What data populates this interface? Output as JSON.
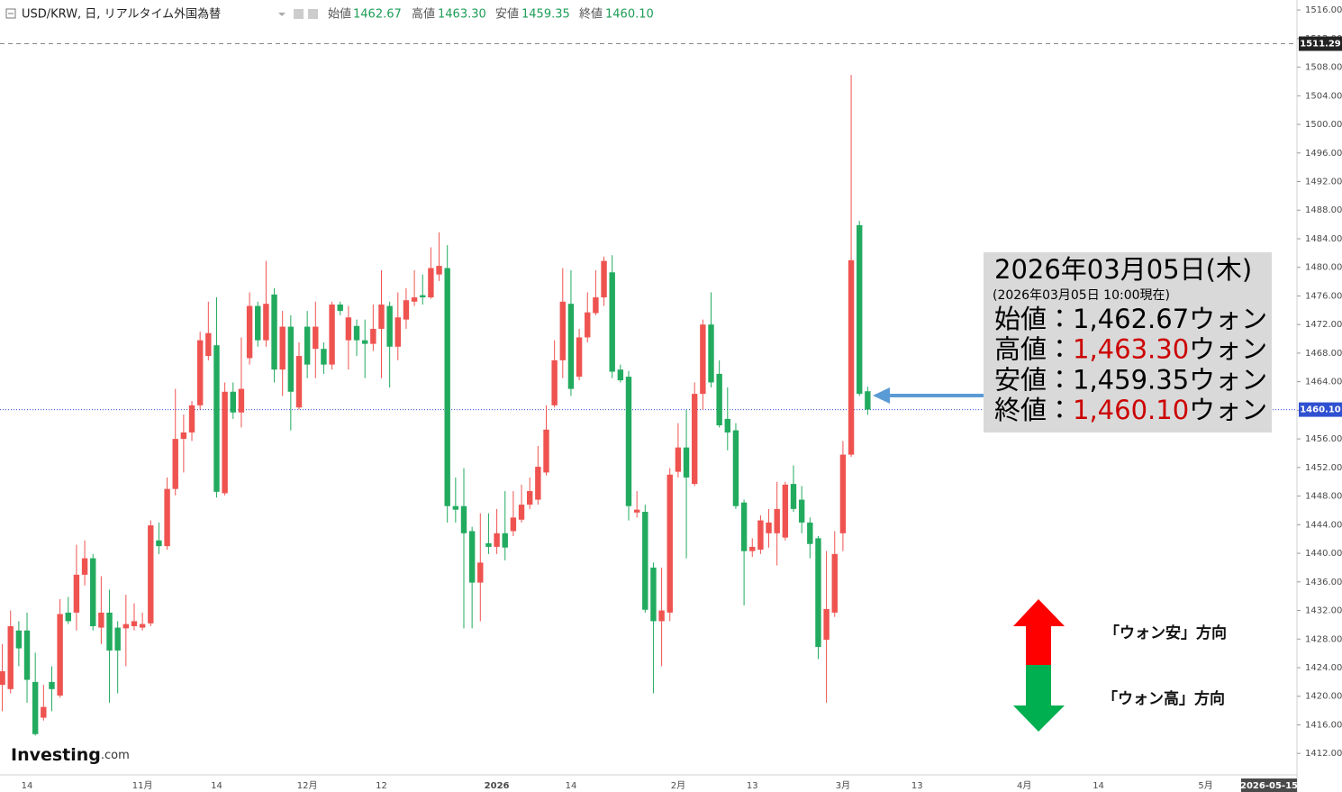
{
  "chart_data": {
    "type": "candlestick",
    "header": {
      "symbol": "USD/KRW, 日, リアルタイム外国為替",
      "ohlc": [
        {
          "label": "始値",
          "value": "1462.67"
        },
        {
          "label": "高値",
          "value": "1463.30"
        },
        {
          "label": "安値",
          "value": "1459.35"
        },
        {
          "label": "終値",
          "value": "1460.10"
        }
      ]
    },
    "categories": [
      null,
      null,
      null,
      "14",
      null,
      null,
      null,
      null,
      null,
      null,
      null,
      null,
      null,
      null,
      null,
      null,
      null,
      "11月",
      null,
      null,
      null,
      null,
      null,
      null,
      null,
      null,
      "14",
      null,
      null,
      null,
      null,
      null,
      null,
      null,
      null,
      null,
      null,
      "12月",
      null,
      null,
      null,
      null,
      null,
      null,
      null,
      null,
      "12",
      null,
      null,
      null,
      null,
      null,
      null,
      null,
      null,
      null,
      null,
      null,
      null,
      null,
      "2026",
      null,
      null,
      null,
      null,
      null,
      null,
      null,
      null,
      "14",
      null,
      null,
      null,
      null,
      null,
      null,
      null,
      null,
      null,
      null,
      null,
      null,
      "2月",
      null,
      null,
      null,
      null,
      null,
      null,
      null,
      null,
      "13",
      null,
      null,
      null,
      null,
      null,
      null,
      null,
      null,
      null,
      null,
      "3月",
      null,
      null,
      null,
      null,
      null,
      null,
      null,
      null,
      "13",
      null,
      null,
      null,
      null,
      null,
      null,
      null,
      null,
      null,
      null,
      null,
      null,
      "4月",
      null,
      null,
      null,
      null,
      null,
      null,
      null,
      null,
      "14",
      null,
      null,
      null,
      null,
      null,
      null,
      null,
      null,
      null,
      null,
      null,
      null,
      "5月",
      null,
      null,
      null,
      null,
      null,
      null,
      null,
      null,
      null,
      null
    ],
    "open": [
      1421.6,
      1421.0,
      1429.2,
      1429.2,
      1422.0,
      1417.0,
      1422.0,
      1420.1,
      1431.7,
      1431.7,
      1437.0,
      1439.3,
      1429.6,
      1431.7,
      1429.6,
      1429.5,
      1429.8,
      1429.6,
      1430.2,
      1441.8,
      1441.0,
      1449.0,
      1456.0,
      1456.9,
      1460.7,
      1467.6,
      1469.1,
      1448.4,
      1462.6,
      1459.7,
      1467.3,
      1474.6,
      1469.8,
      1476.2,
      1465.7,
      1471.7,
      1460.4,
      1471.7,
      1468.6,
      1468.6,
      1466.4,
      1474.8,
      1469.8,
      1471.8,
      1469.8,
      1469.3,
      1471.4,
      1474.6,
      1468.9,
      1472.7,
      1475.2,
      1476.1,
      1475.8,
      1479.0,
      1479.9,
      1446.6,
      1446.6,
      1443.1,
      1435.9,
      1441.4,
      1440.9,
      1442.8,
      1443.1,
      1444.7,
      1446.8,
      1447.5,
      1451.3,
      1460.7,
      1467.0,
      1474.9,
      1464.7,
      1470.2,
      1473.6,
      1475.8,
      1479.3,
      1465.7,
      1464.7,
      1445.7,
      1445.8,
      1438.0,
      1430.5,
      1431.7,
      1451.4,
      1454.8,
      1449.7,
      1462.3,
      1472.0,
      1465.1,
      1458.8,
      1457.2,
      1447.1,
      1440.3,
      1440.5,
      1442.8,
      1442.8,
      1442.2,
      1449.7,
      1447.5,
      1444.3,
      1442.1,
      1427.9,
      1431.7,
      1442.8,
      1453.8,
      1485.9,
      1462.67,
      null,
      null,
      null,
      null,
      null,
      null,
      null,
      null,
      null,
      null,
      null,
      null,
      null,
      null,
      null,
      null,
      null,
      null,
      null,
      null,
      null,
      null,
      null,
      null,
      null,
      null,
      null,
      null,
      null,
      null,
      null,
      null,
      null,
      null,
      null,
      null,
      null,
      null,
      null,
      null,
      null,
      null,
      null,
      null,
      null,
      null,
      null,
      null,
      null,
      null,
      null
    ],
    "high": [
      1427.3,
      1432.0,
      1430.5,
      1431.7,
      1426.1,
      1421.6,
      1424.2,
      1433.6,
      1433.9,
      1441.2,
      1441.8,
      1439.9,
      1436.8,
      1434.9,
      1430.5,
      1434.2,
      1433.0,
      1431.7,
      1444.6,
      1444.3,
      1450.6,
      1463.0,
      1459.4,
      1461.3,
      1471.0,
      1475.2,
      1475.8,
      1463.9,
      1463.9,
      1470.2,
      1476.5,
      1475.2,
      1480.9,
      1477.1,
      1473.9,
      1473.3,
      1469.5,
      1473.9,
      1475.2,
      1469.5,
      1475.2,
      1475.2,
      1474.6,
      1472.7,
      1472.7,
      1474.8,
      1479.6,
      1475.2,
      1476.5,
      1477.1,
      1479.6,
      1479.0,
      1482.8,
      1484.9,
      1483.1,
      1450.6,
      1451.9,
      1443.7,
      1445.6,
      1445.6,
      1446.2,
      1448.7,
      1448.7,
      1449.6,
      1450.6,
      1455.0,
      1460.7,
      1469.8,
      1479.9,
      1479.6,
      1471.4,
      1476.5,
      1479.6,
      1481.5,
      1481.7,
      1466.4,
      1465.5,
      1448.7,
      1446.8,
      1438.7,
      1438.0,
      1451.9,
      1458.2,
      1460.1,
      1463.9,
      1472.7,
      1476.5,
      1467.0,
      1463.2,
      1458.2,
      1447.5,
      1442.1,
      1445.3,
      1446.2,
      1450.0,
      1450.0,
      1452.3,
      1449.4,
      1445.0,
      1442.4,
      1440.3,
      1443.1,
      1455.7,
      1506.9,
      1486.5,
      1463.3,
      null,
      null,
      null,
      null,
      null,
      null,
      null,
      null,
      null,
      null,
      null,
      null,
      null,
      null,
      null,
      null,
      null,
      null,
      null,
      null,
      null,
      null,
      null,
      null,
      null,
      null,
      null,
      null,
      null,
      null,
      null,
      null,
      null,
      null,
      null,
      null,
      null,
      null,
      null,
      null,
      null,
      null,
      null,
      null,
      null,
      null,
      null,
      null,
      null,
      null,
      null
    ],
    "low": [
      1417.9,
      1420.4,
      1424.2,
      1419.1,
      1414.5,
      1416.6,
      1417.9,
      1419.8,
      1430.1,
      1429.2,
      1435.5,
      1429.2,
      1427.3,
      1419.1,
      1420.4,
      1424.2,
      1429.2,
      1429.2,
      1429.8,
      1439.9,
      1440.5,
      1448.1,
      1451.3,
      1455.7,
      1460.1,
      1467.0,
      1447.8,
      1448.1,
      1458.8,
      1457.6,
      1466.4,
      1468.9,
      1468.9,
      1463.9,
      1462.0,
      1457.2,
      1460.1,
      1464.5,
      1464.5,
      1465.1,
      1465.7,
      1473.3,
      1465.7,
      1467.6,
      1464.5,
      1468.3,
      1464.5,
      1463.2,
      1467.0,
      1471.4,
      1474.6,
      1474.8,
      1475.6,
      1478.1,
      1444.3,
      1444.3,
      1429.5,
      1429.5,
      1430.5,
      1439.9,
      1439.9,
      1439.0,
      1442.4,
      1444.3,
      1446.2,
      1446.8,
      1450.9,
      1460.4,
      1464.5,
      1462.0,
      1464.2,
      1469.5,
      1473.3,
      1474.6,
      1464.5,
      1463.9,
      1444.6,
      1445.0,
      1431.7,
      1420.4,
      1424.2,
      1430.5,
      1450.6,
      1439.3,
      1449.4,
      1460.1,
      1463.2,
      1457.6,
      1454.4,
      1446.2,
      1432.7,
      1439.5,
      1439.9,
      1440.8,
      1438.3,
      1441.8,
      1445.8,
      1442.8,
      1439.3,
      1425.2,
      1419.1,
      1431.1,
      1440.3,
      1453.5,
      1462.0,
      1459.35,
      null,
      null,
      null,
      null,
      null,
      null,
      null,
      null,
      null,
      null,
      null,
      null,
      null,
      null,
      null,
      null,
      null,
      null,
      null,
      null,
      null,
      null,
      null,
      null,
      null,
      null,
      null,
      null,
      null,
      null,
      null,
      null,
      null,
      null,
      null,
      null,
      null,
      null,
      null,
      null,
      null,
      null,
      null,
      null,
      null,
      null,
      null,
      null,
      null,
      null,
      null
    ],
    "close": [
      1423.5,
      1429.8,
      1426.7,
      1422.3,
      1414.7,
      1418.5,
      1421.0,
      1431.5,
      1430.5,
      1437.0,
      1439.3,
      1429.8,
      1431.7,
      1426.4,
      1426.4,
      1430.1,
      1430.5,
      1430.1,
      1443.9,
      1441.0,
      1449.0,
      1456.0,
      1456.9,
      1460.7,
      1469.8,
      1470.8,
      1448.6,
      1462.6,
      1459.7,
      1463.0,
      1474.6,
      1469.8,
      1474.9,
      1465.7,
      1471.7,
      1462.6,
      1467.6,
      1466.4,
      1471.7,
      1466.4,
      1474.8,
      1473.9,
      1473.0,
      1469.8,
      1469.3,
      1471.4,
      1474.8,
      1468.9,
      1473.0,
      1475.4,
      1475.8,
      1475.8,
      1479.9,
      1480.2,
      1446.6,
      1446.1,
      1442.8,
      1435.9,
      1438.7,
      1440.9,
      1442.8,
      1440.8,
      1445.0,
      1446.8,
      1448.7,
      1452.1,
      1457.3,
      1467.0,
      1475.2,
      1463.0,
      1470.2,
      1473.7,
      1475.8,
      1480.9,
      1465.4,
      1464.2,
      1446.6,
      1446.1,
      1432.1,
      1430.5,
      1432.0,
      1451.0,
      1454.8,
      1450.6,
      1462.3,
      1472.0,
      1463.9,
      1457.9,
      1456.9,
      1446.6,
      1440.3,
      1440.9,
      1444.6,
      1444.3,
      1446.2,
      1449.6,
      1446.2,
      1444.3,
      1441.3,
      1426.9,
      1432.2,
      1439.9,
      1453.8,
      1481.0,
      1462.3,
      1460.1,
      null,
      null,
      null,
      null,
      null,
      null,
      null,
      null,
      null,
      null,
      null,
      null,
      null,
      null,
      null,
      null,
      null,
      null,
      null,
      null,
      null,
      null,
      null,
      null,
      null,
      null,
      null,
      null,
      null,
      null,
      null,
      null,
      null,
      null,
      null,
      null,
      null,
      null,
      null,
      null,
      null,
      null,
      null,
      null,
      null,
      null,
      null,
      null,
      null,
      null,
      null
    ],
    "up_color": "#ef5350",
    "down_color": "#22ab5f",
    "ylim": [
      1409.0,
      1517.4
    ],
    "yticks": [
      {
        "value": 1412,
        "label": "1412.00"
      },
      {
        "value": 1416,
        "label": "1416.00"
      },
      {
        "value": 1420,
        "label": "1420.00"
      },
      {
        "value": 1424,
        "label": "1424.00"
      },
      {
        "value": 1428,
        "label": "1428.00"
      },
      {
        "value": 1432,
        "label": "1432.00"
      },
      {
        "value": 1436,
        "label": "1436.00"
      },
      {
        "value": 1440,
        "label": "1440.00"
      },
      {
        "value": 1444,
        "label": "1444.00"
      },
      {
        "value": 1448,
        "label": "1448.00"
      },
      {
        "value": 1452,
        "label": "1452.00"
      },
      {
        "value": 1456,
        "label": "1456.00"
      },
      {
        "value": 1460,
        "label": "1460.00"
      },
      {
        "value": 1464,
        "label": "1464.00"
      },
      {
        "value": 1468,
        "label": "1468.00"
      },
      {
        "value": 1472,
        "label": "1472.00"
      },
      {
        "value": 1476,
        "label": "1476.00"
      },
      {
        "value": 1480,
        "label": "1480.00"
      },
      {
        "value": 1484,
        "label": "1484.00"
      },
      {
        "value": 1488,
        "label": "1488.00"
      },
      {
        "value": 1492,
        "label": "1492.00"
      },
      {
        "value": 1496,
        "label": "1496.00"
      },
      {
        "value": 1500,
        "label": "1500.00"
      },
      {
        "value": 1504,
        "label": "1504.00"
      },
      {
        "value": 1508,
        "label": "1508.00"
      },
      {
        "value": 1512,
        "label": "1512.00"
      },
      {
        "value": 1516,
        "label": "1516.00"
      }
    ],
    "grid": false,
    "high_line": {
      "value": 1511.29,
      "label": "1511.29"
    },
    "last_price": {
      "value": 1460.1,
      "label": "1460.10"
    },
    "cursor_date": "2026-05-15",
    "annotation": {
      "date": "2026年03月05日(木)",
      "asof": "(2026年03月05日 10:00現在)",
      "lines": [
        {
          "label": "始値：",
          "value": "1,462.67",
          "unit": "ウォン",
          "color": "#000000"
        },
        {
          "label": "高値：",
          "value": "1,463.30",
          "unit": "ウォン",
          "color": "#cc0000"
        },
        {
          "label": "安値：",
          "value": "1,459.35",
          "unit": "ウォン",
          "color": "#000000"
        },
        {
          "label": "終値：",
          "value": "1,460.10",
          "unit": "ウォン",
          "color": "#cc0000"
        }
      ]
    },
    "direction_labels": [
      "「ウォン安」方向",
      "「ウォン高」方向"
    ],
    "logo": {
      "main": "Investing",
      "suffix": ".com"
    }
  }
}
